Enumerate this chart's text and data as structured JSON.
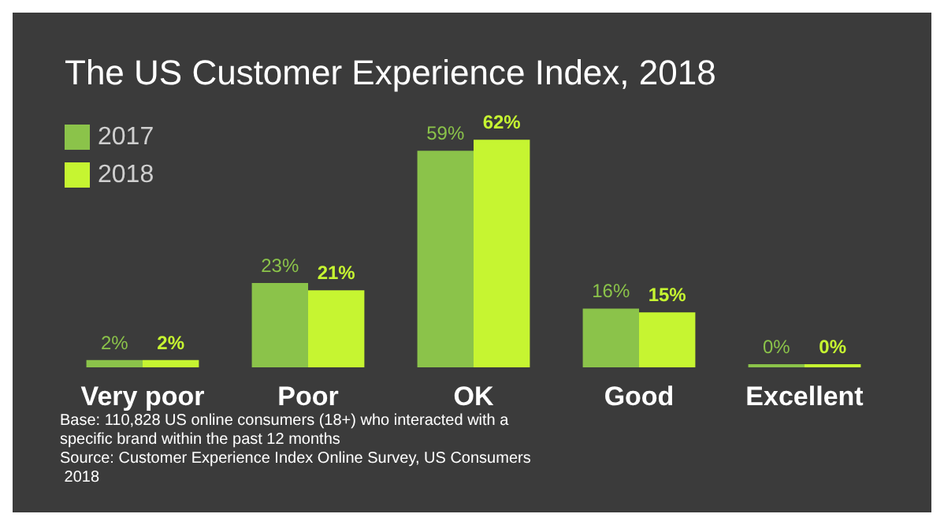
{
  "chart_data": {
    "type": "bar",
    "title": "The US Customer Experience Index, 2018",
    "categories": [
      "Very poor",
      "Poor",
      "OK",
      "Good",
      "Excellent"
    ],
    "series": [
      {
        "name": "2017",
        "color": "#8bc34a",
        "values": [
          2,
          23,
          59,
          16,
          0
        ],
        "value_labels": [
          "2%",
          "23%",
          "59%",
          "16%",
          "0%"
        ]
      },
      {
        "name": "2018",
        "color": "#c6f531",
        "values": [
          2,
          21,
          62,
          15,
          0
        ],
        "value_labels": [
          "2%",
          "21%",
          "62%",
          "15%",
          "0%"
        ]
      }
    ],
    "legend": "top left",
    "annotations": [
      "Base: 110,828 US online consumers (18+) who interacted with a specific brand within the past 12 months",
      "Source: Customer Experience Index Online Survey, US Consumers 2018"
    ]
  }
}
